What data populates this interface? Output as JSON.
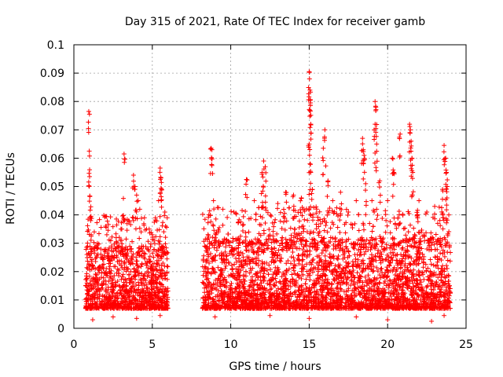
{
  "chart_data": {
    "type": "scatter",
    "title": "Day 315 of 2021, Rate Of TEC Index for receiver gamb",
    "xlabel": "GPS time / hours",
    "ylabel": "ROTI / TECUs",
    "xlim": [
      0,
      25
    ],
    "ylim": [
      0,
      0.1
    ],
    "xticks": [
      0,
      5,
      10,
      15,
      20,
      25
    ],
    "xtick_labels": [
      "0",
      "5",
      "10",
      "15",
      "20",
      "25"
    ],
    "yticks": [
      0,
      0.01,
      0.02,
      0.03,
      0.04,
      0.05,
      0.06,
      0.07,
      0.08,
      0.09,
      0.1
    ],
    "ytick_labels": [
      "0",
      "0.01",
      "0.02",
      "0.03",
      "0.04",
      "0.05",
      "0.06",
      "0.07",
      "0.08",
      "0.09",
      "0.1"
    ],
    "grid": true,
    "marker": "+",
    "color": "#ff0000",
    "series": [
      {
        "name": "ROTI",
        "points": [
          [
            0.95,
            0.0765
          ],
          [
            0.98,
            0.0625
          ],
          [
            1.0,
            0.0535
          ],
          [
            1.02,
            0.0465
          ],
          [
            1.05,
            0.039
          ],
          [
            1.1,
            0.033
          ],
          [
            1.15,
            0.028
          ],
          [
            1.2,
            0.022
          ],
          [
            1.3,
            0.034
          ],
          [
            1.5,
            0.03
          ],
          [
            1.8,
            0.025
          ],
          [
            2.1,
            0.033
          ],
          [
            2.4,
            0.029
          ],
          [
            2.7,
            0.028
          ],
          [
            3.0,
            0.035
          ],
          [
            3.2,
            0.0615
          ],
          [
            3.5,
            0.038
          ],
          [
            3.8,
            0.054
          ],
          [
            3.9,
            0.05
          ],
          [
            4.0,
            0.047
          ],
          [
            4.1,
            0.045
          ],
          [
            4.2,
            0.042
          ],
          [
            4.5,
            0.039
          ],
          [
            4.8,
            0.035
          ],
          [
            5.0,
            0.033
          ],
          [
            5.2,
            0.039
          ],
          [
            5.4,
            0.045
          ],
          [
            5.5,
            0.0565
          ],
          [
            5.55,
            0.053
          ],
          [
            5.6,
            0.049
          ],
          [
            5.8,
            0.041
          ],
          [
            5.95,
            0.039
          ],
          [
            8.75,
            0.0635
          ],
          [
            8.8,
            0.063
          ],
          [
            8.9,
            0.045
          ],
          [
            9.5,
            0.042
          ],
          [
            10.2,
            0.041
          ],
          [
            11.0,
            0.0525
          ],
          [
            11.5,
            0.045
          ],
          [
            12.0,
            0.055
          ],
          [
            12.1,
            0.059
          ],
          [
            12.2,
            0.057
          ],
          [
            13.0,
            0.044
          ],
          [
            13.5,
            0.048
          ],
          [
            14.0,
            0.047
          ],
          [
            14.5,
            0.046
          ],
          [
            15.0,
            0.0905
          ],
          [
            15.02,
            0.088
          ],
          [
            15.05,
            0.084
          ],
          [
            15.08,
            0.0795
          ],
          [
            15.1,
            0.072
          ],
          [
            15.0,
            0.065
          ],
          [
            15.05,
            0.058
          ],
          [
            15.1,
            0.055
          ],
          [
            15.2,
            0.049
          ],
          [
            15.9,
            0.0635
          ],
          [
            16.0,
            0.07
          ],
          [
            16.2,
            0.052
          ],
          [
            16.5,
            0.045
          ],
          [
            17.0,
            0.048
          ],
          [
            17.5,
            0.041
          ],
          [
            18.0,
            0.045
          ],
          [
            18.4,
            0.067
          ],
          [
            18.45,
            0.063
          ],
          [
            18.5,
            0.061
          ],
          [
            18.6,
            0.051
          ],
          [
            19.0,
            0.045
          ],
          [
            19.2,
            0.08
          ],
          [
            19.25,
            0.078
          ],
          [
            19.2,
            0.072
          ],
          [
            19.3,
            0.065
          ],
          [
            19.5,
            0.052
          ],
          [
            20.0,
            0.045
          ],
          [
            20.3,
            0.06
          ],
          [
            20.4,
            0.055
          ],
          [
            20.8,
            0.0685
          ],
          [
            21.4,
            0.072
          ],
          [
            21.45,
            0.07
          ],
          [
            21.5,
            0.066
          ],
          [
            21.55,
            0.06
          ],
          [
            21.6,
            0.055
          ],
          [
            22.0,
            0.045
          ],
          [
            22.5,
            0.041
          ],
          [
            23.0,
            0.043
          ],
          [
            23.5,
            0.049
          ],
          [
            23.6,
            0.0645
          ],
          [
            23.7,
            0.06
          ],
          [
            23.75,
            0.055
          ],
          [
            23.8,
            0.05
          ],
          [
            23.9,
            0.04
          ],
          [
            1.2,
            0.003
          ],
          [
            2.5,
            0.004
          ],
          [
            4.0,
            0.0035
          ],
          [
            5.5,
            0.0045
          ],
          [
            9.0,
            0.004
          ],
          [
            12.5,
            0.0045
          ],
          [
            15.0,
            0.0035
          ],
          [
            18.0,
            0.004
          ],
          [
            20.0,
            0.003
          ],
          [
            22.8,
            0.0025
          ],
          [
            23.6,
            0.0045
          ]
        ],
        "dense_bands": [
          {
            "x_start": 0.75,
            "x_end": 6.0,
            "y_min": 0.003,
            "y_typical_max": 0.025
          },
          {
            "x_start": 8.2,
            "x_end": 24.0,
            "y_min": 0.003,
            "y_typical_max": 0.028
          }
        ],
        "data_gap": [
          6.0,
          8.2
        ]
      }
    ]
  }
}
